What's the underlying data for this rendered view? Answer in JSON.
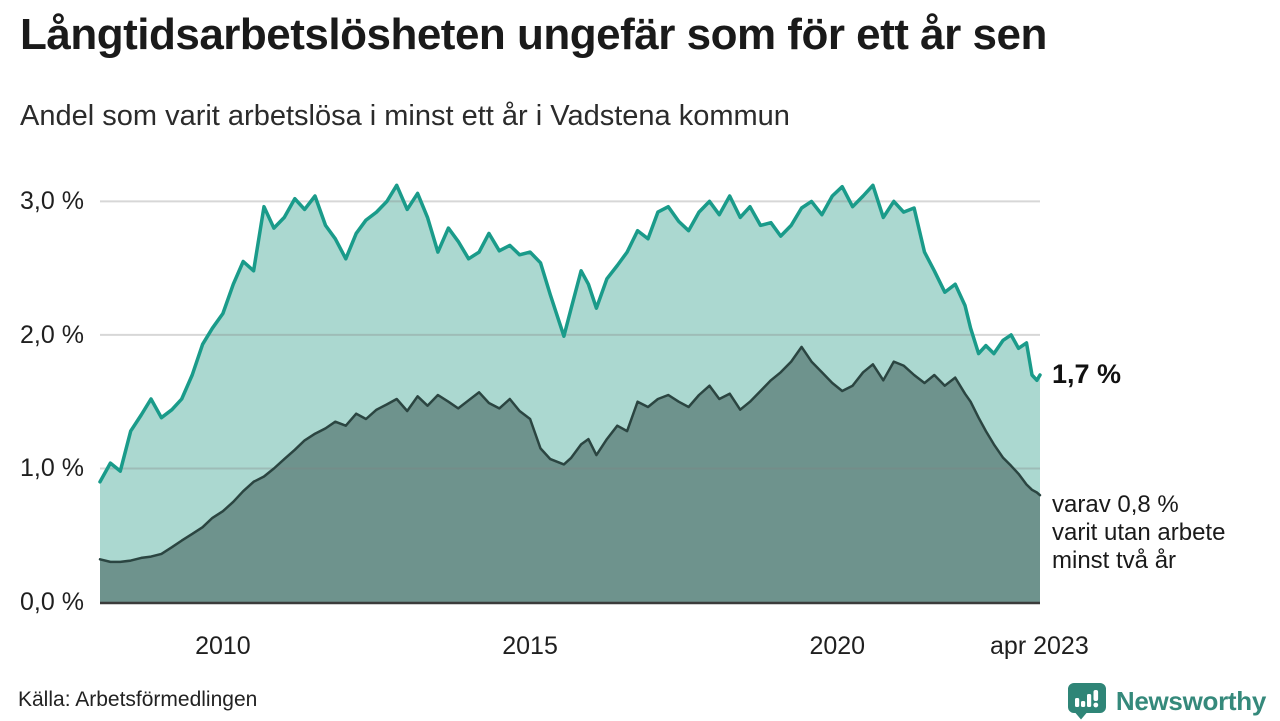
{
  "header": {
    "title": "Långtidsarbetslösheten ungefär som för ett år sen",
    "subtitle": "Andel som varit arbetslösa i minst ett år i Vadstena kommun"
  },
  "footer": {
    "source": "Källa: Arbetsförmedlingen",
    "brand": "Newsworthy",
    "brand_color": "#35897b",
    "brand_icon": "newsworthy-bar-chart-bubble"
  },
  "chart_data": {
    "type": "area",
    "title": "Långtidsarbetslösheten ungefär som för ett år sen",
    "subtitle": "Andel som varit arbetslösa i minst ett år i Vadstena kommun",
    "unit": "%",
    "grid": true,
    "legend": "none",
    "xlim": [
      2008.0,
      2023.3
    ],
    "ylim": [
      0,
      3.16
    ],
    "x_ticks": [
      {
        "v": 2010,
        "label": "2010"
      },
      {
        "v": 2015,
        "label": "2015"
      },
      {
        "v": 2020,
        "label": "2020"
      },
      {
        "v": 2023.29,
        "label": "apr 2023"
      }
    ],
    "y_ticks": [
      {
        "v": 0,
        "label": "0,0 %"
      },
      {
        "v": 1,
        "label": "1,0 %"
      },
      {
        "v": 2,
        "label": "2,0 %"
      },
      {
        "v": 3,
        "label": "3,0 %"
      }
    ],
    "x": [
      2008.0,
      2008.17,
      2008.33,
      2008.5,
      2008.67,
      2008.83,
      2009.0,
      2009.17,
      2009.33,
      2009.5,
      2009.67,
      2009.83,
      2010.0,
      2010.17,
      2010.33,
      2010.5,
      2010.67,
      2010.83,
      2011.0,
      2011.17,
      2011.33,
      2011.5,
      2011.67,
      2011.83,
      2012.0,
      2012.17,
      2012.33,
      2012.5,
      2012.67,
      2012.83,
      2013.0,
      2013.17,
      2013.33,
      2013.5,
      2013.67,
      2013.83,
      2014.0,
      2014.17,
      2014.33,
      2014.5,
      2014.67,
      2014.83,
      2015.0,
      2015.17,
      2015.33,
      2015.55,
      2015.67,
      2015.83,
      2015.95,
      2016.08,
      2016.25,
      2016.42,
      2016.58,
      2016.75,
      2016.92,
      2017.08,
      2017.25,
      2017.42,
      2017.58,
      2017.75,
      2017.92,
      2018.08,
      2018.25,
      2018.42,
      2018.58,
      2018.75,
      2018.92,
      2019.08,
      2019.25,
      2019.42,
      2019.58,
      2019.75,
      2019.92,
      2020.08,
      2020.25,
      2020.42,
      2020.58,
      2020.75,
      2020.92,
      2021.08,
      2021.25,
      2021.42,
      2021.58,
      2021.75,
      2021.92,
      2022.08,
      2022.17,
      2022.3,
      2022.42,
      2022.55,
      2022.7,
      2022.83,
      2022.95,
      2023.08,
      2023.17,
      2023.25,
      2023.3
    ],
    "series": [
      {
        "name": "Andel som varit arbetslösa i minst ett år",
        "line_color": "#1a9b8a",
        "fill_color": "#abd8d0",
        "line_width": 3.5,
        "values": [
          0.9,
          1.04,
          0.98,
          1.28,
          1.4,
          1.52,
          1.38,
          1.44,
          1.52,
          1.7,
          1.93,
          2.05,
          2.16,
          2.38,
          2.55,
          2.48,
          2.96,
          2.8,
          2.88,
          3.02,
          2.94,
          3.04,
          2.82,
          2.72,
          2.57,
          2.76,
          2.86,
          2.92,
          3.0,
          3.12,
          2.94,
          3.06,
          2.88,
          2.62,
          2.8,
          2.7,
          2.57,
          2.62,
          2.76,
          2.63,
          2.67,
          2.6,
          2.62,
          2.54,
          2.3,
          1.99,
          2.2,
          2.48,
          2.38,
          2.2,
          2.42,
          2.52,
          2.62,
          2.78,
          2.72,
          2.92,
          2.96,
          2.85,
          2.78,
          2.92,
          3.0,
          2.9,
          3.04,
          2.88,
          2.96,
          2.82,
          2.84,
          2.74,
          2.82,
          2.95,
          3.0,
          2.9,
          3.04,
          3.11,
          2.96,
          3.04,
          3.12,
          2.88,
          3.0,
          2.92,
          2.95,
          2.62,
          2.48,
          2.32,
          2.38,
          2.22,
          2.05,
          1.86,
          1.92,
          1.86,
          1.96,
          2.0,
          1.9,
          1.94,
          1.7,
          1.66,
          1.7
        ]
      },
      {
        "name": "varav utan arbete minst två år",
        "line_color": "#2b4541",
        "fill_color": "#6e938d",
        "line_width": 2.5,
        "values": [
          0.32,
          0.3,
          0.3,
          0.31,
          0.33,
          0.34,
          0.36,
          0.41,
          0.46,
          0.51,
          0.56,
          0.63,
          0.68,
          0.75,
          0.83,
          0.9,
          0.94,
          1.0,
          1.07,
          1.14,
          1.21,
          1.26,
          1.3,
          1.35,
          1.32,
          1.41,
          1.37,
          1.44,
          1.48,
          1.52,
          1.43,
          1.54,
          1.47,
          1.55,
          1.5,
          1.45,
          1.51,
          1.57,
          1.49,
          1.45,
          1.52,
          1.43,
          1.37,
          1.15,
          1.07,
          1.03,
          1.08,
          1.18,
          1.22,
          1.1,
          1.22,
          1.32,
          1.28,
          1.5,
          1.46,
          1.52,
          1.55,
          1.5,
          1.46,
          1.55,
          1.62,
          1.52,
          1.56,
          1.44,
          1.5,
          1.58,
          1.66,
          1.72,
          1.8,
          1.91,
          1.8,
          1.72,
          1.64,
          1.58,
          1.62,
          1.72,
          1.78,
          1.66,
          1.8,
          1.77,
          1.7,
          1.64,
          1.7,
          1.62,
          1.68,
          1.56,
          1.5,
          1.38,
          1.28,
          1.18,
          1.08,
          1.02,
          0.96,
          0.88,
          0.84,
          0.82,
          0.8
        ]
      }
    ],
    "end_labels": {
      "value_label": "1,7 %",
      "value_y": 1.7,
      "note_lines": [
        "varav 0,8 %",
        "varit utan arbete",
        "minst två år"
      ],
      "note_y": 0.8
    },
    "colors": {
      "gridline": "#828282",
      "baseline": "#3b3b3b"
    }
  }
}
